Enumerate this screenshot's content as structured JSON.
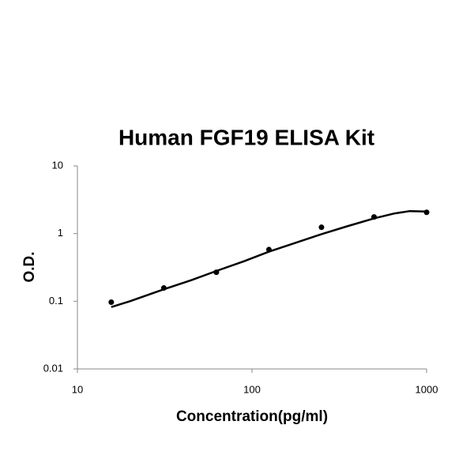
{
  "chart_data": {
    "type": "scatter",
    "title": "Human FGF19 ELISA Kit",
    "x_label": "Concentration(pg/ml)",
    "y_label": "O.D.",
    "xscale": "log",
    "yscale": "log",
    "xlim": [
      10,
      1000
    ],
    "ylim": [
      0.01,
      10
    ],
    "xticks": [
      10,
      100,
      1000
    ],
    "yticks": [
      0.01,
      0.1,
      1,
      10
    ],
    "grid": false,
    "series": [
      {
        "type": "scatter",
        "color": "#000000",
        "x": [
          15.625,
          31.25,
          62.5,
          125,
          250,
          500,
          1000
        ],
        "values": [
          0.097,
          0.157,
          0.268,
          0.58,
          1.24,
          1.76,
          2.06
        ]
      },
      {
        "type": "line",
        "color": "#000000",
        "x": [
          15.625,
          20,
          31.25,
          45,
          62.5,
          90,
          125,
          180,
          250,
          350,
          500,
          650,
          800,
          1000
        ],
        "values": [
          0.082,
          0.1,
          0.15,
          0.205,
          0.28,
          0.39,
          0.54,
          0.74,
          0.98,
          1.28,
          1.68,
          1.98,
          2.15,
          2.12
        ]
      }
    ]
  }
}
